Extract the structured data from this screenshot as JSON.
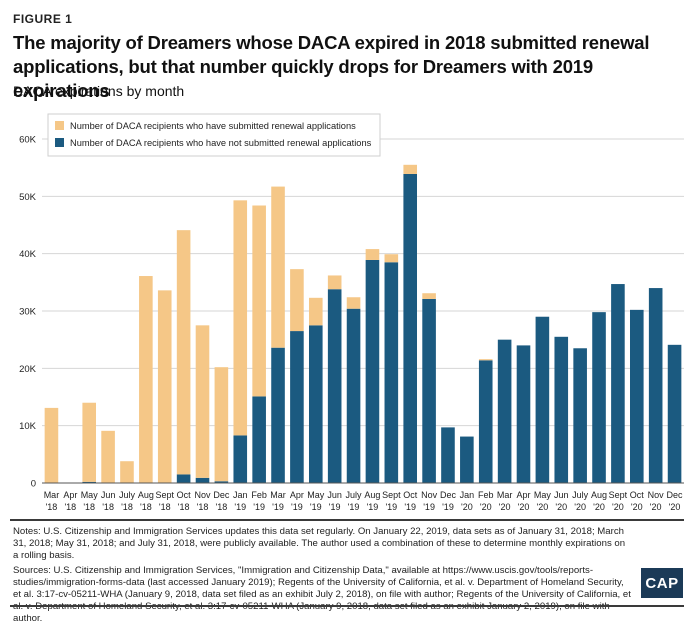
{
  "figure_label": "FIGURE 1",
  "title": "The majority of Dreamers whose DACA expired in 2018 submitted renewal applications, but that number quickly drops for Dreamers with 2019 expirations",
  "subtitle": "DACA expirations by month",
  "chart_data": {
    "type": "bar",
    "stacked": true,
    "title": "DACA expirations by month",
    "xlabel": "",
    "ylabel": "",
    "ylim": [
      0,
      60000
    ],
    "yticks": [
      {
        "value": 0,
        "label": "0"
      },
      {
        "value": 10000,
        "label": "10K"
      },
      {
        "value": 20000,
        "label": "20K"
      },
      {
        "value": 30000,
        "label": "30K"
      },
      {
        "value": 40000,
        "label": "40K"
      },
      {
        "value": 50000,
        "label": "50K"
      },
      {
        "value": 60000,
        "label": "60K"
      }
    ],
    "categories": [
      {
        "month": "Mar",
        "year": "'18"
      },
      {
        "month": "Apr",
        "year": "'18"
      },
      {
        "month": "May",
        "year": "'18"
      },
      {
        "month": "Jun",
        "year": "'18"
      },
      {
        "month": "July",
        "year": "'18"
      },
      {
        "month": "Aug",
        "year": "'18"
      },
      {
        "month": "Sept",
        "year": "'18"
      },
      {
        "month": "Oct",
        "year": "'18"
      },
      {
        "month": "Nov",
        "year": "'18"
      },
      {
        "month": "Dec",
        "year": "'18"
      },
      {
        "month": "Jan",
        "year": "'19"
      },
      {
        "month": "Feb",
        "year": "'19"
      },
      {
        "month": "Mar",
        "year": "'19"
      },
      {
        "month": "Apr",
        "year": "'19"
      },
      {
        "month": "May",
        "year": "'19"
      },
      {
        "month": "Jun",
        "year": "'19"
      },
      {
        "month": "July",
        "year": "'19"
      },
      {
        "month": "Aug",
        "year": "'19"
      },
      {
        "month": "Sept",
        "year": "'19"
      },
      {
        "month": "Oct",
        "year": "'19"
      },
      {
        "month": "Nov",
        "year": "'19"
      },
      {
        "month": "Dec",
        "year": "'19"
      },
      {
        "month": "Jan",
        "year": "'20"
      },
      {
        "month": "Feb",
        "year": "'20"
      },
      {
        "month": "Mar",
        "year": "'20"
      },
      {
        "month": "Apr",
        "year": "'20"
      },
      {
        "month": "May",
        "year": "'20"
      },
      {
        "month": "Jun",
        "year": "'20"
      },
      {
        "month": "July",
        "year": "'20"
      },
      {
        "month": "Aug",
        "year": "'20"
      },
      {
        "month": "Sept",
        "year": "'20"
      },
      {
        "month": "Oct",
        "year": "'20"
      },
      {
        "month": "Nov",
        "year": "'20"
      },
      {
        "month": "Dec",
        "year": "'20"
      }
    ],
    "series": [
      {
        "name": "Number of DACA recipients who have not submitted renewal applications",
        "color": "#1b5a80",
        "values": [
          0,
          0,
          200,
          0,
          0,
          0,
          0,
          1500,
          900,
          300,
          8300,
          15100,
          23600,
          26500,
          27500,
          33800,
          30400,
          38900,
          38500,
          53900,
          32100,
          9700,
          8100,
          21400,
          25000,
          24000,
          29000,
          25500,
          23500,
          29800,
          34700,
          30200,
          34000,
          24100
        ]
      },
      {
        "name": "Number of DACA recipients who have submitted renewal applications",
        "color": "#f5c787",
        "values": [
          13100,
          0,
          13800,
          9100,
          3800,
          36100,
          33600,
          42600,
          26600,
          19900,
          41000,
          33300,
          28100,
          10800,
          4800,
          2400,
          2000,
          1900,
          1400,
          1600,
          1000,
          0,
          0,
          200,
          0,
          0,
          0,
          0,
          0,
          0,
          0,
          0,
          0,
          0
        ]
      }
    ],
    "legend": {
      "position": "top-left",
      "entries": [
        {
          "label": "Number of DACA recipients who have submitted renewal applications",
          "color": "#f5c787"
        },
        {
          "label": "Number of DACA recipients who have not submitted renewal applications",
          "color": "#1b5a80"
        }
      ]
    }
  },
  "notes": {
    "line1": "Notes: U.S. Citizenship and Immigration Services updates this data set regularly. On January 22, 2019, data sets as of January 31, 2018; March 31, 2018; May 31, 2018; and July 31, 2018, were publicly available. The author used a combination of these to determine monthly expirations on a rolling basis.",
    "line2": "Sources: U.S. Citizenship and Immigration Services, \"Immigration and Citizenship Data,\" available at https://www.uscis.gov/tools/reports-studies/immigration-forms-data (last accessed January 2019); Regents of the University of California, et al. v. Department of Homeland Security, et al. 3:17-cv-05211-WHA (January 9, 2018, data set filed as an exhibit July 2, 2018), on file with author; Regents of the University of California, et al. v. Department of Homeland Security, et al. 3:17-cv-05211-WHA (January 9, 2018, data set filed as an exhibit January 2, 2019), on file with author."
  },
  "logo_text": "CAP"
}
